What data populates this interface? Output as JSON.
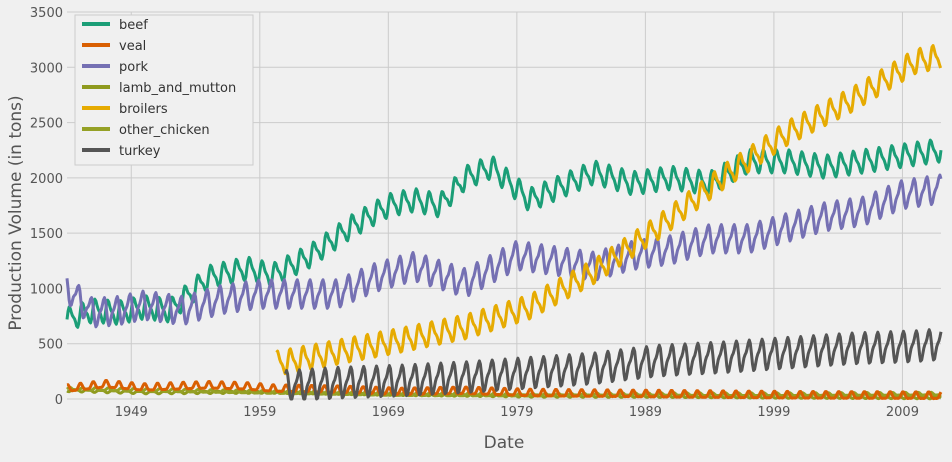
{
  "chart_data": {
    "type": "line",
    "xlabel": "Date",
    "ylabel": "Production Volume (in tons)",
    "xlim": [
      1944.0,
      2012.0
    ],
    "ylim": [
      0,
      3500
    ],
    "x_ticks": [
      1949,
      1959,
      1969,
      1979,
      1989,
      1999,
      2009
    ],
    "y_ticks": [
      0,
      500,
      1000,
      1500,
      2000,
      2500,
      3000,
      3500
    ],
    "grid": true,
    "legend_position": "top-left",
    "series": [
      {
        "name": "beef",
        "color": "#1b9e77",
        "seasonal_amplitude": 90,
        "x": [
          1944.0,
          1946,
          1948,
          1950,
          1952,
          1955,
          1958,
          1960,
          1963,
          1966,
          1969,
          1971,
          1973,
          1975,
          1977,
          1979,
          1980,
          1983,
          1985,
          1988,
          1991,
          1994,
          1997,
          2000,
          2003,
          2006,
          2009,
          2012.0
        ],
        "y": [
          720,
          800,
          780,
          830,
          800,
          1100,
          1180,
          1120,
          1300,
          1550,
          1750,
          1800,
          1750,
          2000,
          2100,
          1900,
          1800,
          1950,
          2050,
          1950,
          2000,
          1950,
          2150,
          2150,
          2100,
          2150,
          2200,
          2250
        ]
      },
      {
        "name": "veal",
        "color": "#d95f02",
        "seasonal_amplitude": 30,
        "x": [
          1944.0,
          1947,
          1950,
          1955,
          1958,
          1960,
          1965,
          1970,
          1975,
          1980,
          1990,
          2000,
          2012.0
        ],
        "y": [
          90,
          130,
          100,
          120,
          110,
          90,
          80,
          60,
          70,
          50,
          40,
          30,
          25
        ]
      },
      {
        "name": "pork",
        "color": "#7570b3",
        "seasonal_amplitude": 110,
        "x": [
          1944.0,
          1946,
          1948,
          1950,
          1953,
          1956,
          1959,
          1962,
          1965,
          1968,
          1971,
          1975,
          1979,
          1982,
          1985,
          1988,
          1991,
          1994,
          1997,
          2000,
          2003,
          2006,
          2009,
          2012.0
        ],
        "y": [
          1000,
          780,
          800,
          850,
          800,
          900,
          950,
          950,
          950,
          1100,
          1200,
          1050,
          1300,
          1250,
          1200,
          1300,
          1350,
          1450,
          1450,
          1550,
          1650,
          1700,
          1850,
          1900
        ]
      },
      {
        "name": "lamb_and_mutton",
        "color": "#8f9a1e",
        "seasonal_amplitude": 10,
        "x": [
          1944.0,
          1950,
          1960,
          1970,
          1980,
          1990,
          2000,
          2012.0
        ],
        "y": [
          80,
          60,
          65,
          45,
          30,
          28,
          20,
          15
        ]
      },
      {
        "name": "broilers",
        "color": "#e6ab02",
        "seasonal_amplitude": 95,
        "x": [
          1960.3,
          1965,
          1970,
          1975,
          1980,
          1985,
          1990,
          1995,
          2000,
          2005,
          2010,
          2012.0
        ],
        "y": [
          320,
          420,
          530,
          650,
          830,
          1150,
          1550,
          2000,
          2400,
          2700,
          3050,
          3100
        ]
      },
      {
        "name": "other_chicken",
        "color": "#95a126",
        "seasonal_amplitude": 12,
        "x": [
          1944.0,
          1950,
          1960,
          1970,
          1980,
          1990,
          2000,
          2012.0
        ],
        "y": [
          90,
          80,
          60,
          40,
          35,
          40,
          40,
          45
        ]
      },
      {
        "name": "turkey",
        "color": "#555555",
        "seasonal_amplitude": 120,
        "x": [
          1961.0,
          1965,
          1970,
          1975,
          1980,
          1985,
          1990,
          1995,
          2000,
          2005,
          2010,
          2012.0
        ],
        "y": [
          120,
          150,
          170,
          200,
          240,
          280,
          350,
          380,
          420,
          460,
          480,
          500
        ]
      }
    ]
  }
}
